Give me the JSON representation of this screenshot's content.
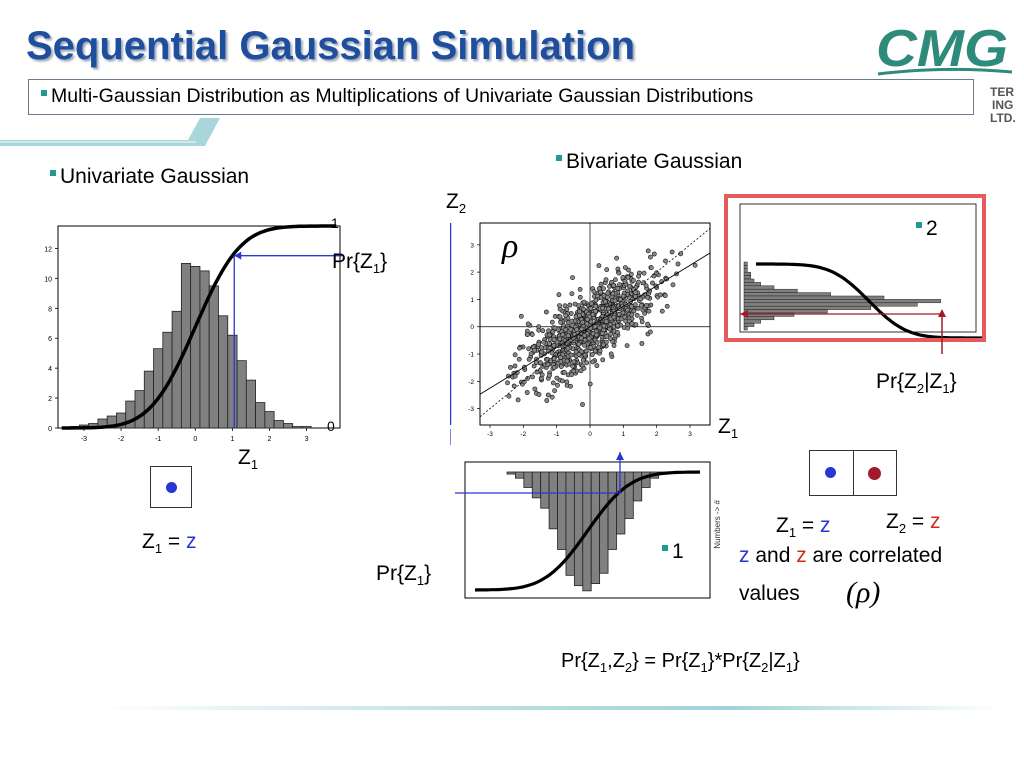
{
  "title": "Sequential Gaussian Simulation",
  "subtitle": "Multi-Gaussian Distribution as Multiplications of Univariate Gaussian Distributions",
  "logo": {
    "brand": "CMG",
    "side_text": [
      "TER",
      "ING",
      "LTD."
    ]
  },
  "left": {
    "heading": "Univariate Gaussian",
    "pr_label": "Pr{Z",
    "pr_sub": "1",
    "pr_close": "}",
    "axis_label": "Z",
    "axis_sub": "1",
    "cdf_top": "1",
    "cdf_bottom": "0",
    "eq_z": "Z",
    "eq_sub": "1",
    "eq_mid": " = ",
    "eq_val": "z"
  },
  "middle": {
    "heading": "Bivariate Gaussian",
    "rho": "ρ",
    "z2_label": "Z",
    "z2_sub": "2",
    "z1_label": "Z",
    "z1_sub": "1",
    "pr_label": "Pr{Z",
    "pr_sub": "1",
    "pr_close": "}",
    "step": "1",
    "rotated_tag": "Numbers -> #"
  },
  "right": {
    "step": "2",
    "pr_label": "Pr{Z",
    "pr_sub2": "2",
    "pr_mid": "|Z",
    "pr_sub1": "1",
    "pr_close": "}",
    "eq1_z": "Z",
    "eq1_sub": "1",
    "eq1_mid": " = ",
    "eq1_val": "z",
    "eq2_z": "Z",
    "eq2_sub": "2",
    "eq2_mid": " = ",
    "eq2_val": "z",
    "corr_z": "z",
    "corr_and": " and ",
    "corr_z2": "z",
    "corr_rest": " are correlated",
    "corr_values": "values",
    "corr_rho": "(ρ)"
  },
  "formula": {
    "p1": "Pr{Z",
    "s1": "1",
    "p2": ",Z",
    "s2": "2",
    "p3": "} = Pr{Z",
    "s3": "1",
    "p4": "}*Pr{Z",
    "s4": "2",
    "p5": "|Z",
    "s5": "1",
    "p6": "}"
  },
  "colors": {
    "title": "#1f4e9c",
    "accent_line": "#2a35d6",
    "red_box": "#e45b5b",
    "bar": "#808080"
  },
  "chart_data": [
    {
      "type": "bar",
      "name": "univariate-histogram-cdf",
      "x": [
        -3.25,
        -3.0,
        -2.75,
        -2.5,
        -2.25,
        -2.0,
        -1.75,
        -1.5,
        -1.25,
        -1.0,
        -0.75,
        -0.5,
        -0.25,
        0.0,
        0.25,
        0.5,
        0.75,
        1.0,
        1.25,
        1.5,
        1.75,
        2.0,
        2.25,
        2.5,
        2.75,
        3.0
      ],
      "values": [
        0.1,
        0.2,
        0.3,
        0.6,
        0.8,
        1.0,
        1.8,
        2.5,
        3.8,
        5.3,
        6.4,
        7.8,
        11.0,
        10.8,
        10.5,
        9.5,
        7.5,
        6.2,
        4.5,
        3.2,
        1.7,
        1.1,
        0.5,
        0.3,
        0.1,
        0.1
      ],
      "xticks": [
        "-3",
        "-2",
        "-1",
        "0",
        "1",
        "2",
        "3"
      ],
      "yticks": [
        "0",
        "2",
        "4",
        "6",
        "8",
        "10",
        "12"
      ],
      "ylim": [
        0,
        13.5
      ],
      "xlim": [
        -3.7,
        3.9
      ],
      "cdf_axis": [
        "0",
        "1"
      ],
      "selected_z": 1
    },
    {
      "type": "scatter",
      "name": "bivariate-scatter",
      "xlim": [
        -3.3,
        3.6
      ],
      "ylim": [
        -3.6,
        3.8
      ],
      "xticks": [
        "-3",
        "-2",
        "-1",
        "0",
        "1",
        "2",
        "3"
      ],
      "yticks": [
        "-3",
        "-2",
        "-1",
        "0",
        "1",
        "2",
        "3"
      ],
      "selected_z1": 1,
      "n_points": 900,
      "correlation": 0.75
    },
    {
      "type": "bar",
      "name": "rotated-histogram-cdf",
      "values": [
        0.2,
        0.6,
        1.5,
        2.5,
        3.5,
        5.5,
        7.5,
        10.0,
        11.0,
        11.5,
        10.8,
        9.8,
        7.5,
        6.0,
        4.5,
        2.8,
        1.5,
        0.6,
        0.2
      ]
    },
    {
      "type": "bar",
      "name": "conditional-histogram",
      "values": [
        0.1,
        0.1,
        0.1,
        0.2,
        0.2,
        0.3,
        0.5,
        0.9,
        1.6,
        2.6,
        4.2,
        5.9,
        5.2,
        3.8,
        2.5,
        1.5,
        0.9,
        0.5,
        0.3,
        0.1
      ]
    }
  ]
}
